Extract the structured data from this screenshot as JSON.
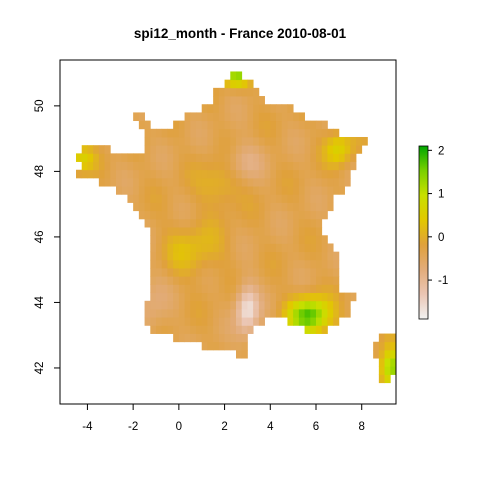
{
  "title": "spi12_month - France 2010-08-01",
  "map": {
    "type": "raster-map",
    "variable": "spi12_month",
    "region": "France",
    "date": "2010-08-01",
    "xlim": [
      -5.2,
      9.5
    ],
    "ylim": [
      40.9,
      51.4
    ],
    "xticks": [
      -4,
      -2,
      0,
      2,
      4,
      6,
      8
    ],
    "yticks": [
      42,
      44,
      46,
      48,
      50
    ],
    "xtick_labels": [
      "-4",
      "-2",
      "0",
      "2",
      "4",
      "6",
      "8"
    ],
    "ytick_labels": [
      "42",
      "44",
      "46",
      "48",
      "50"
    ]
  },
  "legend": {
    "range": [
      -1.9,
      2.1
    ],
    "ticks": [
      -1,
      0,
      1,
      2
    ],
    "tick_labels": [
      "-1",
      "0",
      "1",
      "2"
    ],
    "colors": [
      "#f2f2f2",
      "#ebc6b4",
      "#e2ac7a",
      "#e0a13c",
      "#e2c800",
      "#c8e000",
      "#7ad000",
      "#00a600"
    ]
  },
  "colors": {
    "high_positive": "#1fa51f",
    "positive": "#c8e000",
    "neutral": "#e8b85a",
    "negative": "#e3b198",
    "low_negative": "#f5f0ee"
  }
}
